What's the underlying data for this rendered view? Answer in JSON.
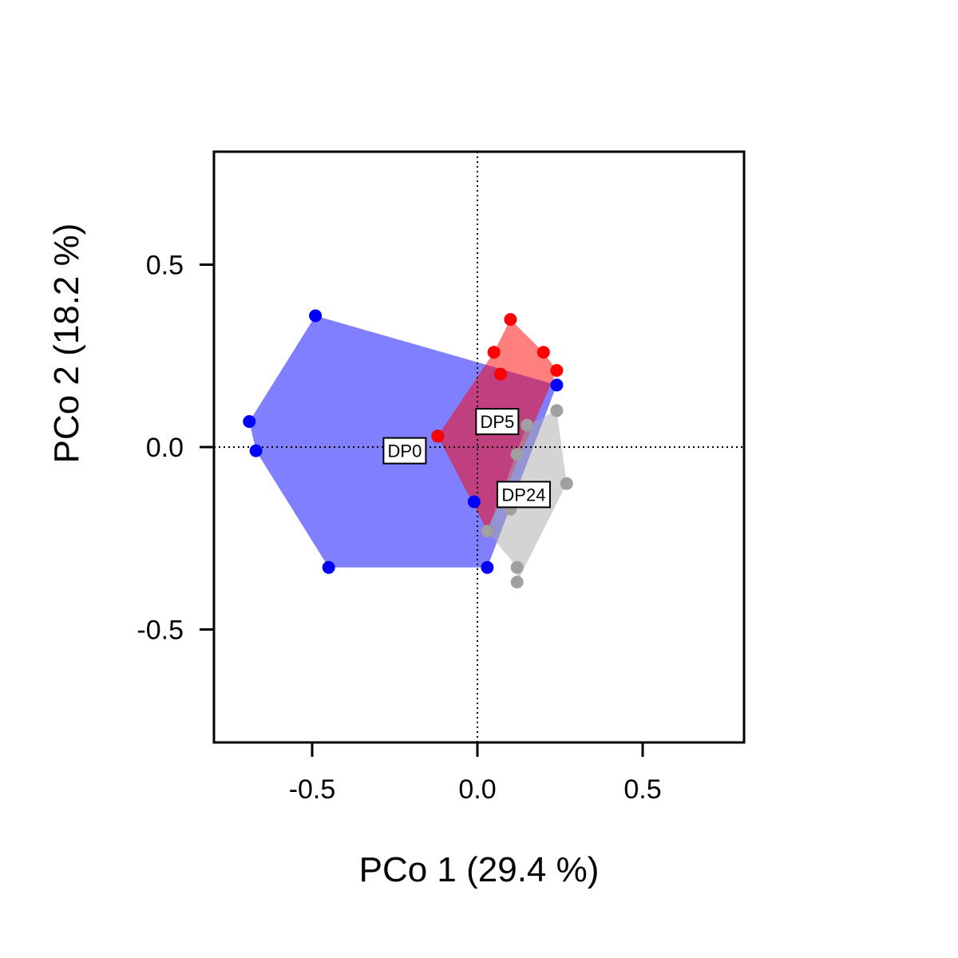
{
  "chart_data": {
    "type": "scatter",
    "title": "",
    "xlabel": "PCo 1 (29.4 %)",
    "ylabel": "PCo 2 (18.2 %)",
    "xlim": [
      -0.8,
      0.8
    ],
    "ylim": [
      -0.8,
      0.8
    ],
    "xticks": [
      {
        "value": -0.5,
        "label": "-0.5"
      },
      {
        "value": 0.0,
        "label": "0.0"
      },
      {
        "value": 0.5,
        "label": "0.5"
      }
    ],
    "yticks": [
      {
        "value": -0.5,
        "label": "-0.5"
      },
      {
        "value": 0.0,
        "label": "0.0"
      },
      {
        "value": 0.5,
        "label": "0.5"
      }
    ],
    "reference_lines": {
      "x": 0,
      "y": 0,
      "style": "dotted"
    },
    "grid": false,
    "legend": "none",
    "series": [
      {
        "name": "DP0",
        "color": "#0000ff",
        "hull_fill": "#0000ff",
        "hull_opacity": 0.5,
        "label_position": [
          -0.22,
          -0.01
        ],
        "hull": [
          [
            -0.49,
            0.36
          ],
          [
            -0.69,
            0.07
          ],
          [
            -0.67,
            -0.01
          ],
          [
            -0.45,
            -0.33
          ],
          [
            0.03,
            -0.33
          ],
          [
            0.24,
            0.17
          ]
        ],
        "points": [
          [
            -0.49,
            0.36
          ],
          [
            -0.69,
            0.07
          ],
          [
            -0.67,
            -0.01
          ],
          [
            -0.45,
            -0.33
          ],
          [
            0.03,
            -0.33
          ],
          [
            0.24,
            0.17
          ],
          [
            -0.12,
            0.03
          ],
          [
            0.03,
            -0.23
          ],
          [
            -0.01,
            -0.15
          ]
        ]
      },
      {
        "name": "DP5",
        "color": "#ff0000",
        "hull_fill": "#ff0000",
        "hull_opacity": 0.5,
        "label_position": [
          0.06,
          0.07
        ],
        "hull": [
          [
            0.1,
            0.35
          ],
          [
            0.2,
            0.26
          ],
          [
            0.24,
            0.21
          ],
          [
            0.03,
            -0.23
          ],
          [
            -0.12,
            0.03
          ],
          [
            0.05,
            0.26
          ]
        ],
        "points": [
          [
            0.1,
            0.35
          ],
          [
            0.05,
            0.26
          ],
          [
            0.2,
            0.26
          ],
          [
            0.24,
            0.21
          ],
          [
            0.07,
            0.2
          ],
          [
            -0.12,
            0.03
          ],
          [
            0.03,
            -0.23
          ]
        ]
      },
      {
        "name": "DP24",
        "color": "#a0a0a0",
        "hull_fill": "#a9a9a9",
        "hull_opacity": 0.5,
        "label_position": [
          0.14,
          -0.13
        ],
        "hull": [
          [
            0.24,
            0.1
          ],
          [
            0.27,
            -0.1
          ],
          [
            0.12,
            -0.37
          ],
          [
            0.12,
            -0.33
          ],
          [
            0.03,
            -0.23
          ],
          [
            0.15,
            0.06
          ]
        ],
        "points": [
          [
            0.24,
            0.1
          ],
          [
            0.15,
            0.06
          ],
          [
            0.12,
            -0.02
          ],
          [
            0.27,
            -0.1
          ],
          [
            0.1,
            -0.17
          ],
          [
            0.12,
            -0.33
          ],
          [
            0.12,
            -0.37
          ],
          [
            0.03,
            -0.23
          ]
        ]
      }
    ]
  }
}
